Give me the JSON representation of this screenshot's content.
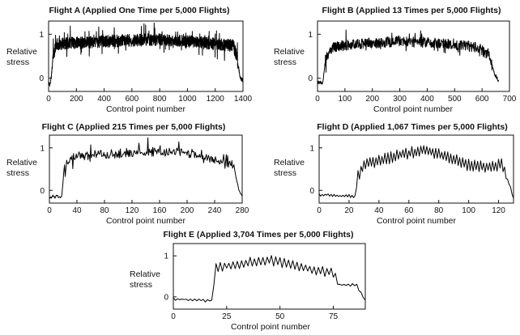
{
  "chart_data": [
    {
      "type": "line",
      "title": "Flight A (Applied One Time per 5,000 Flights)",
      "xlabel": "Control point number",
      "ylabel": "Relative stress",
      "xlim": [
        0,
        1400
      ],
      "ylim": [
        -0.3,
        1.3
      ],
      "xticks": [
        0,
        200,
        400,
        600,
        800,
        1000,
        1200,
        1400
      ],
      "yticks": [
        0,
        1
      ],
      "grid": false,
      "points": 1400,
      "style": "dense",
      "profile": [
        [
          0,
          -0.1
        ],
        [
          10,
          -0.15
        ],
        [
          20,
          0.05
        ],
        [
          35,
          0.55
        ],
        [
          60,
          0.78
        ],
        [
          200,
          0.8
        ],
        [
          400,
          0.84
        ],
        [
          600,
          0.86
        ],
        [
          800,
          0.88
        ],
        [
          1000,
          0.84
        ],
        [
          1200,
          0.78
        ],
        [
          1330,
          0.74
        ],
        [
          1355,
          0.5
        ],
        [
          1380,
          0.0
        ],
        [
          1400,
          -0.05
        ]
      ],
      "noise": 0.14
    },
    {
      "type": "line",
      "title": "Flight B (Applied 13 Times per 5,000 Flights)",
      "xlabel": "Control point number",
      "ylabel": "Relative stress",
      "xlim": [
        0,
        700
      ],
      "ylim": [
        -0.3,
        1.3
      ],
      "xticks": [
        0,
        100,
        200,
        300,
        400,
        500,
        600,
        700
      ],
      "yticks": [
        0,
        1
      ],
      "grid": false,
      "points": 660,
      "style": "dense",
      "profile": [
        [
          0,
          -0.1
        ],
        [
          20,
          -0.1
        ],
        [
          30,
          0.5
        ],
        [
          60,
          0.72
        ],
        [
          150,
          0.78
        ],
        [
          300,
          0.84
        ],
        [
          450,
          0.8
        ],
        [
          590,
          0.7
        ],
        [
          605,
          0.6
        ],
        [
          625,
          0.55
        ],
        [
          645,
          0.1
        ],
        [
          660,
          -0.05
        ]
      ],
      "noise": 0.12
    },
    {
      "type": "line",
      "title": "Flight C (Applied 215 Times per 5,000 Flights)",
      "xlabel": "Control point number",
      "ylabel": "Relative stress",
      "xlim": [
        0,
        280
      ],
      "ylim": [
        -0.3,
        1.3
      ],
      "xticks": [
        0,
        40,
        80,
        120,
        160,
        200,
        240,
        280
      ],
      "yticks": [
        0,
        1
      ],
      "grid": false,
      "points": 280,
      "style": "dense",
      "profile": [
        [
          0,
          -0.15
        ],
        [
          18,
          -0.15
        ],
        [
          22,
          0.6
        ],
        [
          35,
          0.8
        ],
        [
          80,
          0.85
        ],
        [
          160,
          0.92
        ],
        [
          220,
          0.85
        ],
        [
          245,
          0.7
        ],
        [
          255,
          0.6
        ],
        [
          268,
          0.6
        ],
        [
          275,
          0.0
        ],
        [
          280,
          -0.15
        ]
      ],
      "noise": 0.11
    },
    {
      "type": "line",
      "title": "Flight D (Applied 1,067 Times per 5,000 Flights)",
      "xlabel": "Control point number",
      "ylabel": "Relative stress",
      "xlim": [
        0,
        130
      ],
      "ylim": [
        -0.3,
        1.3
      ],
      "xticks": [
        0,
        20,
        40,
        60,
        80,
        100,
        120
      ],
      "yticks": [
        0,
        1
      ],
      "grid": false,
      "points": 130,
      "style": "zigzag",
      "profile": [
        [
          0,
          -0.1
        ],
        [
          24,
          -0.15
        ],
        [
          26,
          0.35
        ],
        [
          30,
          0.6
        ],
        [
          50,
          0.8
        ],
        [
          70,
          0.95
        ],
        [
          85,
          0.8
        ],
        [
          100,
          0.6
        ],
        [
          110,
          0.55
        ],
        [
          118,
          0.55
        ],
        [
          122,
          0.65
        ],
        [
          128,
          0.05
        ],
        [
          130,
          -0.2
        ]
      ],
      "noise": 0.14
    },
    {
      "type": "line",
      "title": "Flight E (Applied 3,704 Times per 5,000 Flights)",
      "xlabel": "Control point number",
      "ylabel": "Relative stress",
      "xlim": [
        0,
        90
      ],
      "ylim": [
        -0.3,
        1.3
      ],
      "xticks": [
        0,
        25,
        50,
        75
      ],
      "yticks": [
        0,
        1
      ],
      "grid": false,
      "points": 90,
      "style": "zigzag",
      "profile": [
        [
          0,
          -0.05
        ],
        [
          18,
          -0.1
        ],
        [
          20,
          0.7
        ],
        [
          30,
          0.8
        ],
        [
          45,
          0.9
        ],
        [
          55,
          0.8
        ],
        [
          65,
          0.65
        ],
        [
          75,
          0.6
        ],
        [
          78,
          0.3
        ],
        [
          86,
          0.28
        ],
        [
          90,
          -0.1
        ]
      ],
      "noise": 0.12
    }
  ]
}
